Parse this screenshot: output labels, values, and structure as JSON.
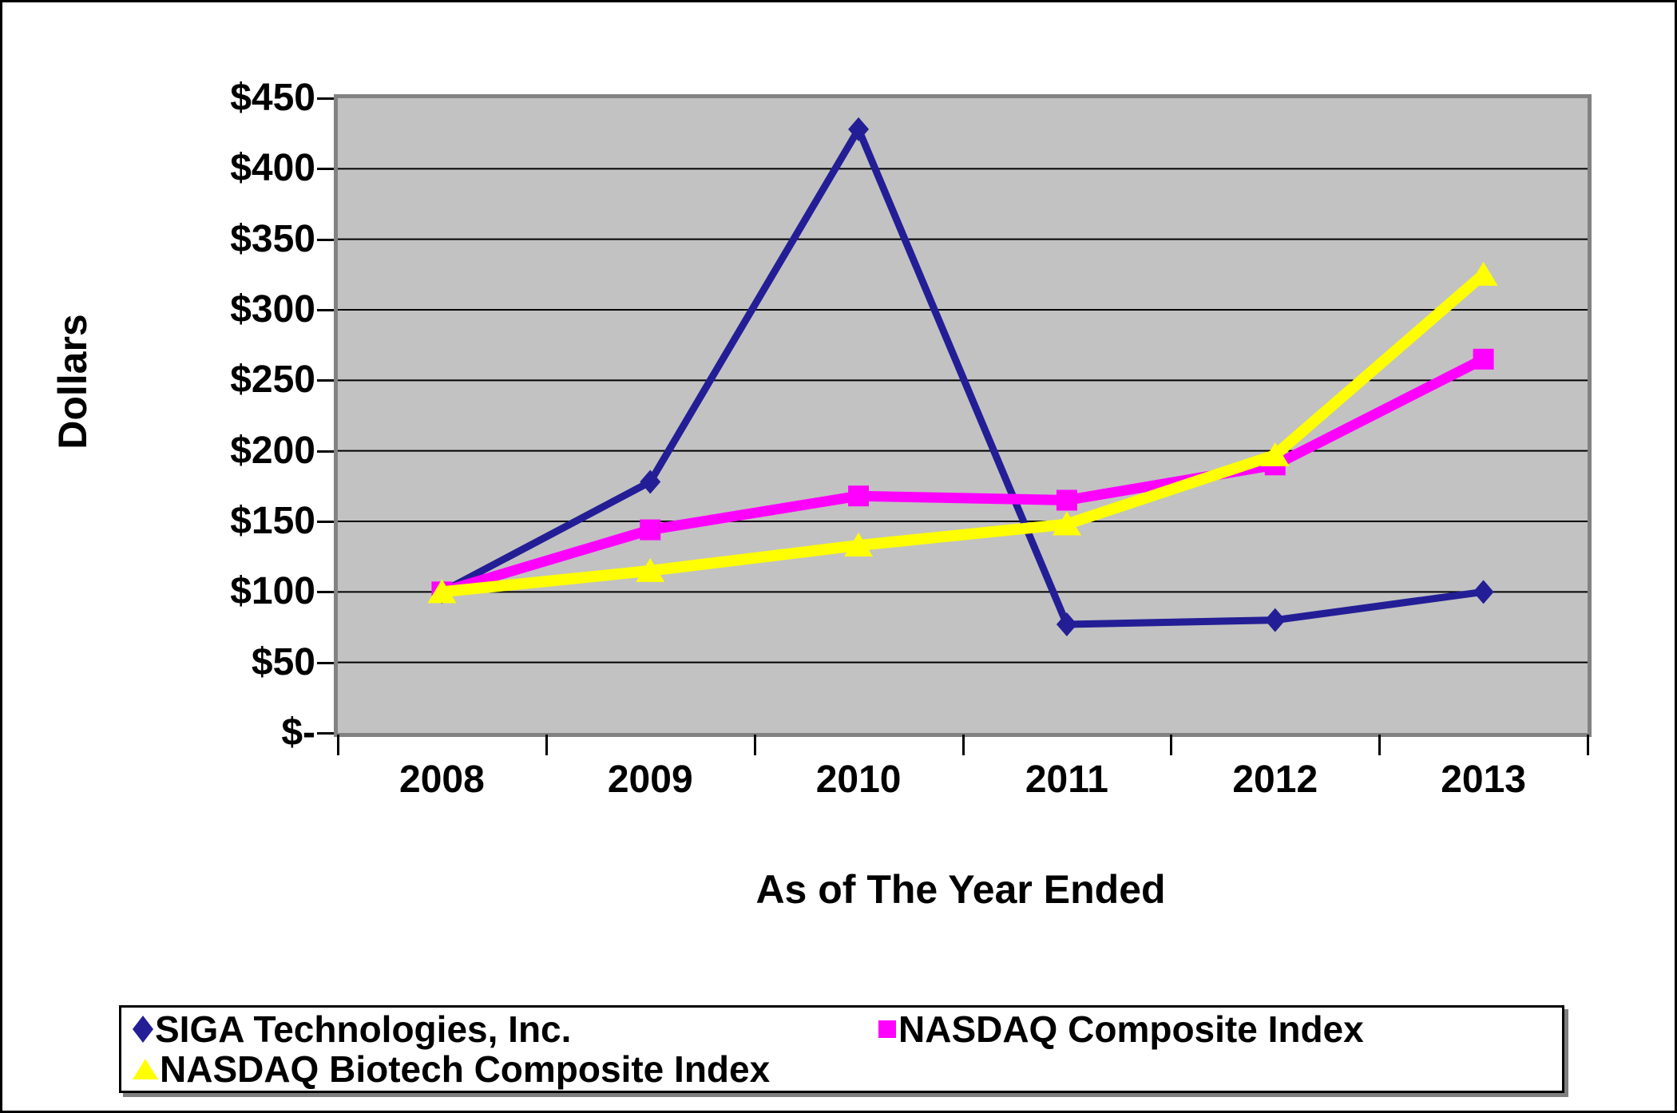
{
  "chart_data": {
    "type": "line",
    "title": "",
    "xlabel": "As of The Year Ended",
    "ylabel": "Dollars",
    "categories": [
      "2008",
      "2009",
      "2010",
      "2011",
      "2012",
      "2013"
    ],
    "series": [
      {
        "name": "SIGA Technologies, Inc.",
        "marker": "diamond",
        "color": "#231E96",
        "line_width": 9,
        "values": [
          100,
          178,
          428,
          77,
          80,
          100
        ]
      },
      {
        "name": "NASDAQ Composite Index",
        "marker": "square",
        "color": "#FF00FF",
        "line_width": 13,
        "values": [
          100,
          144,
          168,
          165,
          190,
          265
        ]
      },
      {
        "name": "NASDAQ Biotech Composite Index",
        "marker": "triangle",
        "color": "#FFFF00",
        "line_width": 14,
        "values": [
          100,
          115,
          133,
          148,
          197,
          325
        ]
      }
    ],
    "ylim": [
      0,
      450
    ],
    "ytick_step": 50,
    "ytick_labels": [
      "$-",
      "$50",
      "$100",
      "$150",
      "$200",
      "$250",
      "$300",
      "$350",
      "$400",
      "$450"
    ],
    "grid": true,
    "gridline_color": "#000000",
    "plot_bg": "#C2C2C2",
    "legend_position": "bottom"
  }
}
